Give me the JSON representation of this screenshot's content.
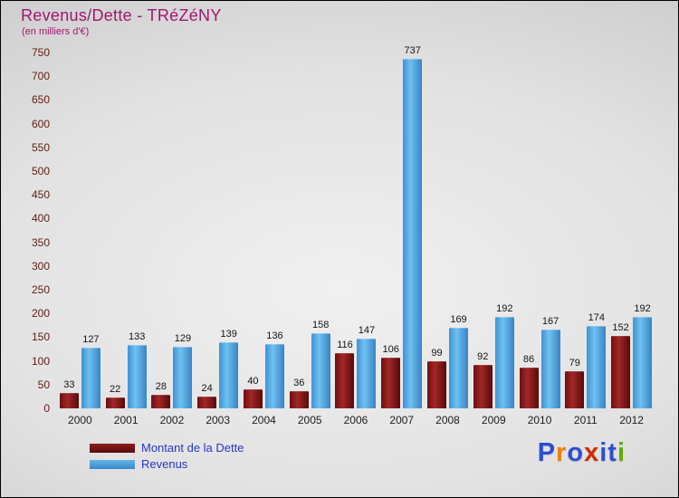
{
  "header": {
    "title": "Revenus/Dette - TRéZéNY",
    "subtitle": "(en milliers d'€)"
  },
  "chart_data": {
    "type": "bar",
    "categories": [
      "2000",
      "2001",
      "2002",
      "2003",
      "2004",
      "2005",
      "2006",
      "2007",
      "2008",
      "2009",
      "2010",
      "2011",
      "2012"
    ],
    "series": [
      {
        "name": "Montant de la Dette",
        "color": "#7d1414",
        "values": [
          33,
          22,
          28,
          24,
          40,
          36,
          116,
          106,
          99,
          92,
          86,
          79,
          152
        ]
      },
      {
        "name": "Revenus",
        "color": "#4da3e0",
        "values": [
          127,
          133,
          129,
          139,
          136,
          158,
          147,
          737,
          169,
          192,
          167,
          174,
          192
        ]
      }
    ],
    "title": "Revenus/Dette - TRéZéNY",
    "xlabel": "",
    "ylabel": "",
    "ylim": [
      0,
      750
    ],
    "ytick_step": 50,
    "yticks": [
      0,
      50,
      100,
      150,
      200,
      250,
      300,
      350,
      400,
      450,
      500,
      550,
      600,
      650,
      700,
      750
    ],
    "grid": false,
    "legend_position": "bottom-left"
  },
  "legend": {
    "items": [
      {
        "label": "Montant de la Dette",
        "color": "#7d1414"
      },
      {
        "label": "Revenus",
        "color": "#4da3e0"
      }
    ]
  },
  "logo": {
    "text": "Proxiti",
    "letters": [
      {
        "char": "P",
        "color": "#2b4fd0"
      },
      {
        "char": "r",
        "color": "#ef8200"
      },
      {
        "char": "o",
        "color": "#2b4fd0"
      },
      {
        "char": "x",
        "color": "#d22d00"
      },
      {
        "char": "i",
        "color": "#2b4fd0"
      },
      {
        "char": "t",
        "color": "#2b4fd0"
      },
      {
        "char": "i",
        "color": "#5fae00"
      }
    ]
  }
}
